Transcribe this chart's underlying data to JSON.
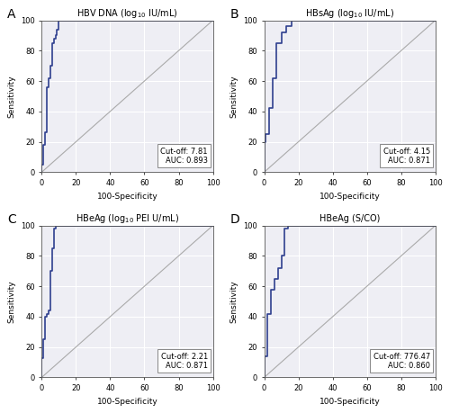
{
  "panels": [
    {
      "label": "A",
      "title": "HBV DNA (log$_{10}$ IU/mL)",
      "cutoff_text": "Cut-off: 7.81\nAUC: 0.893",
      "roc_x": [
        0,
        0,
        1,
        1,
        2,
        2,
        3,
        3,
        4,
        4,
        5,
        5,
        6,
        6,
        7,
        7,
        8,
        8,
        9,
        9,
        10,
        10,
        12,
        12,
        14,
        14,
        16,
        16,
        18,
        18,
        20,
        20,
        100
      ],
      "roc_y": [
        0,
        5,
        5,
        18,
        18,
        26,
        26,
        56,
        56,
        62,
        62,
        70,
        70,
        85,
        85,
        88,
        88,
        90,
        90,
        94,
        94,
        100,
        100,
        100,
        100,
        100,
        100,
        100,
        100,
        100,
        100,
        100,
        100
      ]
    },
    {
      "label": "B",
      "title": "HBsAg (log$_{10}$ IU/mL)",
      "cutoff_text": "Cut-off: 4.15\nAUC: 0.871",
      "roc_x": [
        0,
        0,
        1,
        1,
        3,
        3,
        5,
        5,
        7,
        7,
        10,
        10,
        13,
        13,
        16,
        16,
        19,
        19,
        22,
        22,
        25,
        25,
        35,
        35,
        100
      ],
      "roc_y": [
        0,
        20,
        20,
        25,
        25,
        42,
        42,
        62,
        62,
        85,
        85,
        92,
        92,
        96,
        96,
        100,
        100,
        100,
        100,
        100,
        100,
        100,
        100,
        100,
        100
      ]
    },
    {
      "label": "C",
      "title": "HBeAg (log$_{10}$ PEI U/mL)",
      "cutoff_text": "Cut-off: 2.21\nAUC: 0.871",
      "roc_x": [
        0,
        0,
        1,
        1,
        2,
        2,
        3,
        3,
        4,
        4,
        5,
        5,
        6,
        6,
        7,
        7,
        8,
        8,
        10,
        10,
        12,
        12,
        14,
        14,
        16,
        16,
        18,
        18,
        20,
        20,
        22,
        22,
        24,
        24,
        100
      ],
      "roc_y": [
        0,
        13,
        13,
        25,
        25,
        40,
        40,
        42,
        42,
        44,
        44,
        70,
        70,
        85,
        85,
        98,
        98,
        100,
        100,
        100,
        100,
        100,
        100,
        100,
        100,
        100,
        100,
        100,
        100,
        100,
        100,
        100,
        100,
        100,
        100
      ]
    },
    {
      "label": "D",
      "title": "HBeAg (S/CO)",
      "cutoff_text": "Cut-off: 776.47\nAUC: 0.860",
      "roc_x": [
        0,
        0,
        2,
        2,
        4,
        4,
        6,
        6,
        8,
        8,
        10,
        10,
        12,
        12,
        14,
        14,
        16,
        16,
        18,
        18,
        20,
        20,
        22,
        22,
        24,
        24,
        100
      ],
      "roc_y": [
        0,
        14,
        14,
        42,
        42,
        58,
        58,
        65,
        65,
        72,
        72,
        80,
        80,
        98,
        98,
        100,
        100,
        100,
        100,
        100,
        100,
        100,
        100,
        100,
        100,
        100,
        100
      ]
    }
  ],
  "line_color": "#2E3F8F",
  "diagonal_color": "#aaaaaa",
  "background_color": "#ffffff",
  "grid_color": "#d8d8e8",
  "axis_color": "#555555",
  "xlabel": "100-Specificity",
  "ylabel": "Sensitivity",
  "tick_vals": [
    0,
    20,
    40,
    60,
    80,
    100
  ],
  "axis_lim": [
    0,
    100
  ]
}
